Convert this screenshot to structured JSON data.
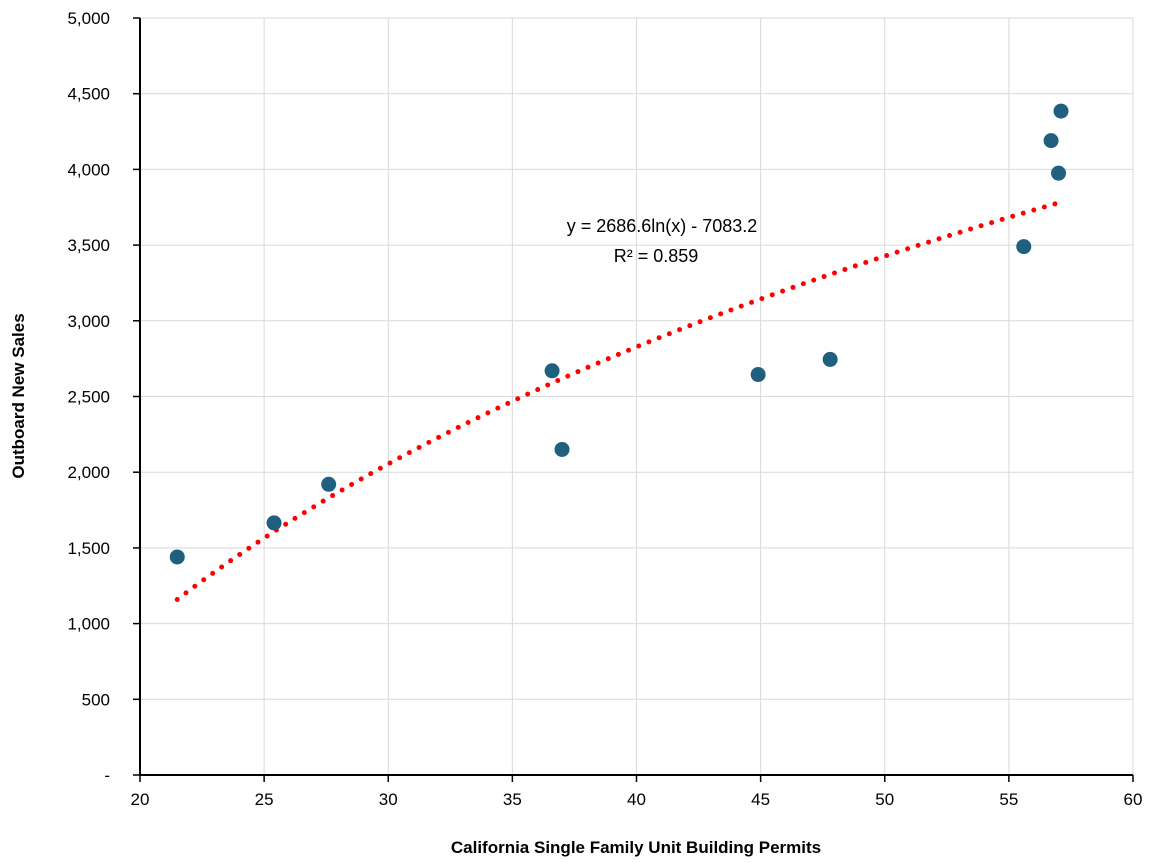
{
  "chart_data": {
    "type": "scatter",
    "title": "",
    "xlabel": "California Single Family Unit Building Permits",
    "ylabel": "Outboard New Sales",
    "xlim": [
      20,
      60
    ],
    "ylim": [
      0,
      5000
    ],
    "x_ticks": [
      20,
      25,
      30,
      35,
      40,
      45,
      50,
      55,
      60
    ],
    "x_tick_labels": [
      "20",
      "25",
      "30",
      "35",
      "40",
      "45",
      "50",
      "55",
      "60"
    ],
    "y_ticks": [
      0,
      500,
      1000,
      1500,
      2000,
      2500,
      3000,
      3500,
      4000,
      4500,
      5000
    ],
    "y_tick_labels": [
      "-",
      "500",
      "1,000",
      "1,500",
      "2,000",
      "2,500",
      "3,000",
      "3,500",
      "4,000",
      "4,500",
      "5,000"
    ],
    "grid": true,
    "legend": "none",
    "series": [
      {
        "color": "#1f5f7f",
        "points": [
          {
            "x": 21.5,
            "y": 1440
          },
          {
            "x": 25.4,
            "y": 1665
          },
          {
            "x": 27.6,
            "y": 1920
          },
          {
            "x": 36.6,
            "y": 2670
          },
          {
            "x": 37.0,
            "y": 2150
          },
          {
            "x": 44.9,
            "y": 2645
          },
          {
            "x": 47.8,
            "y": 2745
          },
          {
            "x": 55.6,
            "y": 3490
          },
          {
            "x": 56.7,
            "y": 4190
          },
          {
            "x": 57.0,
            "y": 3975
          },
          {
            "x": 57.1,
            "y": 4385
          }
        ]
      }
    ],
    "trendline": {
      "type": "logarithmic",
      "a": 2686.6,
      "b": -7083.2,
      "x_range": [
        21.5,
        57.1
      ],
      "color": "#ff0000",
      "style": "dotted",
      "equation_label": "y = 2686.6ln(x) - 7083.2",
      "r2_label": "R² = 0.859"
    }
  }
}
